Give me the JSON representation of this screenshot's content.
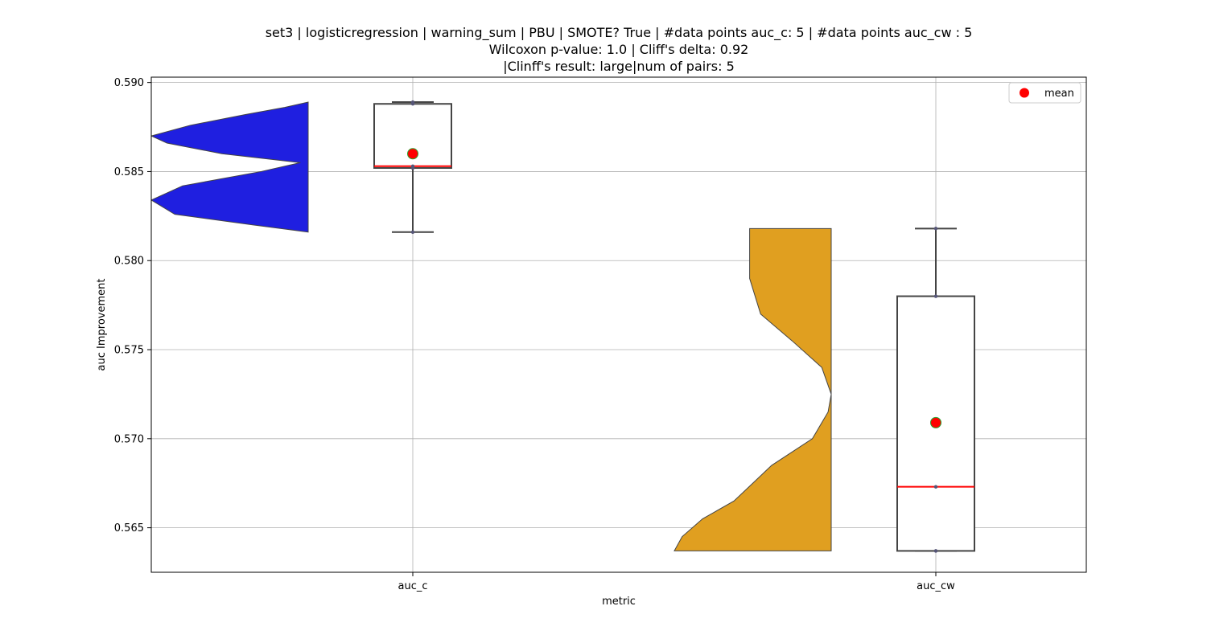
{
  "chart_data": {
    "type": "violin-box",
    "title_lines": [
      "set3 | logisticregression | warning_sum | PBU | SMOTE? True | #data points auc_c: 5 | #data points auc_cw : 5",
      "Wilcoxon p-value: 1.0 | Cliff's delta: 0.92",
      "|Clinff's result: large|num of pairs: 5"
    ],
    "xlabel": "metric",
    "ylabel": "auc Improvement",
    "categories": [
      "auc_c",
      "auc_cw"
    ],
    "ylim": [
      0.5625,
      0.5903
    ],
    "yticks": [
      0.565,
      0.57,
      0.575,
      0.58,
      0.585,
      0.59
    ],
    "ytick_labels": [
      "0.565",
      "0.570",
      "0.575",
      "0.580",
      "0.585",
      "0.590"
    ],
    "grid": true,
    "legend": {
      "position": "top-right",
      "entries": [
        {
          "label": "mean",
          "color": "#ff0000"
        }
      ]
    },
    "series": [
      {
        "name": "auc_c",
        "violin_color": "#1f1fe0",
        "violin_min": 0.5816,
        "violin_max": 0.5889,
        "density_profile": [
          [
            0.5816,
            0.0
          ],
          [
            0.582,
            0.35
          ],
          [
            0.5826,
            0.85
          ],
          [
            0.5834,
            1.0
          ],
          [
            0.5842,
            0.8
          ],
          [
            0.585,
            0.3
          ],
          [
            0.5855,
            0.05
          ],
          [
            0.586,
            0.55
          ],
          [
            0.5866,
            0.9
          ],
          [
            0.587,
            1.0
          ],
          [
            0.5876,
            0.75
          ],
          [
            0.5882,
            0.4
          ],
          [
            0.5886,
            0.15
          ],
          [
            0.5889,
            0.0
          ]
        ],
        "box": {
          "q1": 0.5852,
          "median": 0.5853,
          "q3": 0.5888,
          "whisker_low": 0.5816,
          "whisker_high": 0.5889
        },
        "mean": 0.586,
        "points": [
          0.5816,
          0.5852,
          0.5853,
          0.5888,
          0.5889
        ]
      },
      {
        "name": "auc_cw",
        "violin_color": "#e09f20",
        "violin_min": 0.5637,
        "violin_max": 0.5818,
        "density_profile": [
          [
            0.5637,
            1.0
          ],
          [
            0.5645,
            0.95
          ],
          [
            0.5655,
            0.82
          ],
          [
            0.5665,
            0.62
          ],
          [
            0.5675,
            0.5
          ],
          [
            0.5685,
            0.38
          ],
          [
            0.57,
            0.12
          ],
          [
            0.5715,
            0.02
          ],
          [
            0.5725,
            0.0
          ],
          [
            0.574,
            0.06
          ],
          [
            0.5755,
            0.25
          ],
          [
            0.577,
            0.45
          ],
          [
            0.579,
            0.52
          ],
          [
            0.5805,
            0.52
          ],
          [
            0.5818,
            0.52
          ]
        ],
        "box": {
          "q1": 0.5637,
          "median": 0.5673,
          "q3": 0.578,
          "whisker_low": 0.5637,
          "whisker_high": 0.5818
        },
        "mean": 0.5709,
        "points": [
          0.5637,
          0.5637,
          0.5673,
          0.578,
          0.5818
        ]
      }
    ]
  }
}
